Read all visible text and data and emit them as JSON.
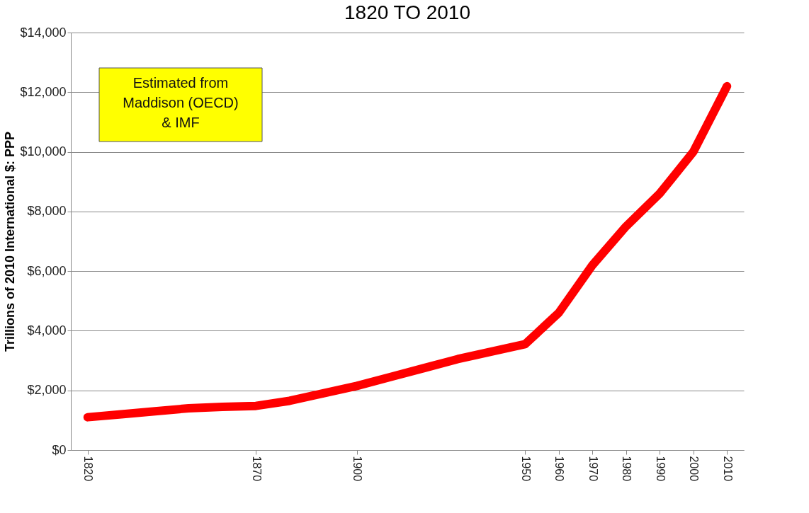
{
  "chart_data": {
    "type": "line",
    "title": "1820 TO 2010",
    "ylabel": "Trillions of 2010 International $: PPP",
    "x": [
      1820,
      1830,
      1840,
      1850,
      1860,
      1870,
      1880,
      1890,
      1900,
      1910,
      1920,
      1930,
      1940,
      1950,
      1960,
      1970,
      1980,
      1990,
      2000,
      2010
    ],
    "series": [
      {
        "color": "#ff0000",
        "values": [
          1100,
          1200,
          1300,
          1400,
          1450,
          1480,
          1650,
          1900,
          2150,
          2450,
          2750,
          3050,
          3300,
          3550,
          4600,
          6200,
          7500,
          8600,
          10000,
          12200
        ]
      }
    ],
    "xlim": [
      1815,
      2015
    ],
    "xticks": [
      1820,
      1870,
      1900,
      1950,
      1960,
      1970,
      1980,
      1990,
      2000,
      2010
    ],
    "ylim": [
      0,
      14000
    ],
    "yticks": [
      {
        "value": 0,
        "label": "$0"
      },
      {
        "value": 2000,
        "label": "$2,000"
      },
      {
        "value": 4000,
        "label": "$4,000"
      },
      {
        "value": 6000,
        "label": "$6,000"
      },
      {
        "value": 8000,
        "label": "$8,000"
      },
      {
        "value": 10000,
        "label": "$10,000"
      },
      {
        "value": 12000,
        "label": "$12,000"
      },
      {
        "value": 14000,
        "label": "$14,000"
      }
    ],
    "grid": "y",
    "line_style": "solid",
    "annotations": [
      "Estimated from\nMaddison (OECD)\n& IMF"
    ]
  }
}
